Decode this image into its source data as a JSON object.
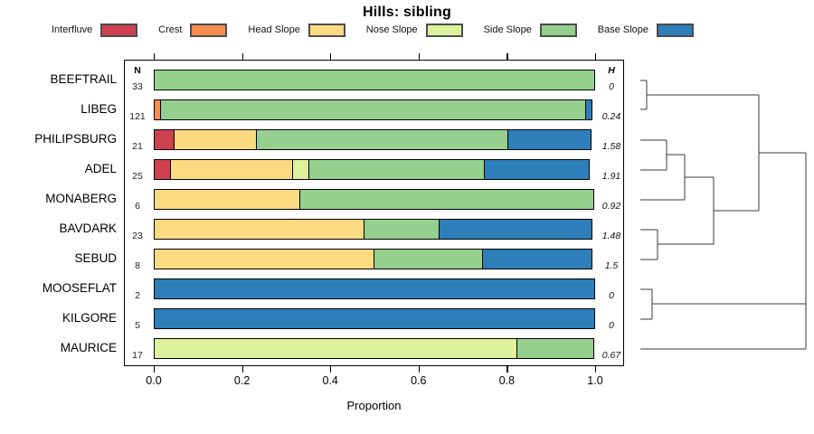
{
  "title": "Hills: sibling",
  "columns": {
    "n_header": "N",
    "h_header": "H"
  },
  "axis": {
    "xlabel": "Proportion"
  },
  "chart_data": {
    "type": "bar",
    "orientation": "horizontal",
    "stacked": true,
    "title": "Hills: sibling",
    "xlabel": "Proportion",
    "xlim": [
      0,
      1
    ],
    "grid": false,
    "legend_position": "top",
    "x_ticks": [
      {
        "value": 0.0,
        "label": "0.0"
      },
      {
        "value": 0.2,
        "label": "0.2"
      },
      {
        "value": 0.4,
        "label": "0.4"
      },
      {
        "value": 0.6,
        "label": "0.6"
      },
      {
        "value": 0.8,
        "label": "0.8"
      },
      {
        "value": 1.0,
        "label": "1.0"
      }
    ],
    "series": [
      {
        "name": "Interfluve",
        "color": "#ce4150"
      },
      {
        "name": "Crest",
        "color": "#f68d4f"
      },
      {
        "name": "Head Slope",
        "color": "#fcda82"
      },
      {
        "name": "Nose Slope",
        "color": "#e0f19b"
      },
      {
        "name": "Side Slope",
        "color": "#95d08f"
      },
      {
        "name": "Base Slope",
        "color": "#2e7fb9"
      }
    ],
    "rows": [
      {
        "category": "BEEFTRAIL",
        "n": "33",
        "h": "0",
        "segments": [
          {
            "series": "Side Slope",
            "fraction": 1.0
          }
        ]
      },
      {
        "category": "LIBEG",
        "n": "121",
        "h": "0.24",
        "segments": [
          {
            "series": "Crest",
            "fraction": 0.017
          },
          {
            "series": "Side Slope",
            "fraction": 0.966
          },
          {
            "series": "Base Slope",
            "fraction": 0.017
          }
        ]
      },
      {
        "category": "PHILIPSBURG",
        "n": "21",
        "h": "1.58",
        "segments": [
          {
            "series": "Interfluve",
            "fraction": 0.048
          },
          {
            "series": "Head Slope",
            "fraction": 0.19
          },
          {
            "series": "Side Slope",
            "fraction": 0.572
          },
          {
            "series": "Base Slope",
            "fraction": 0.19
          }
        ]
      },
      {
        "category": "ADEL",
        "n": "25",
        "h": "1.91",
        "segments": [
          {
            "series": "Interfluve",
            "fraction": 0.04
          },
          {
            "series": "Head Slope",
            "fraction": 0.28
          },
          {
            "series": "Nose Slope",
            "fraction": 0.04
          },
          {
            "series": "Side Slope",
            "fraction": 0.4
          },
          {
            "series": "Base Slope",
            "fraction": 0.24
          }
        ]
      },
      {
        "category": "MONABERG",
        "n": "6",
        "h": "0.92",
        "segments": [
          {
            "series": "Head Slope",
            "fraction": 0.333
          },
          {
            "series": "Side Slope",
            "fraction": 0.667
          }
        ]
      },
      {
        "category": "BAVDARK",
        "n": "23",
        "h": "1.48",
        "segments": [
          {
            "series": "Head Slope",
            "fraction": 0.478
          },
          {
            "series": "Side Slope",
            "fraction": 0.174
          },
          {
            "series": "Base Slope",
            "fraction": 0.348
          }
        ]
      },
      {
        "category": "SEBUD",
        "n": "8",
        "h": "1.5",
        "segments": [
          {
            "series": "Head Slope",
            "fraction": 0.5
          },
          {
            "series": "Side Slope",
            "fraction": 0.25
          },
          {
            "series": "Base Slope",
            "fraction": 0.25
          }
        ]
      },
      {
        "category": "MOOSEFLAT",
        "n": "2",
        "h": "0",
        "segments": [
          {
            "series": "Base Slope",
            "fraction": 1.0
          }
        ]
      },
      {
        "category": "KILGORE",
        "n": "5",
        "h": "0",
        "segments": [
          {
            "series": "Base Slope",
            "fraction": 1.0
          }
        ]
      },
      {
        "category": "MAURICE",
        "n": "17",
        "h": "0.67",
        "segments": [
          {
            "series": "Nose Slope",
            "fraction": 0.824
          },
          {
            "series": "Side Slope",
            "fraction": 0.176
          }
        ]
      }
    ],
    "dendrogram": {
      "description": "right-hanging cluster tree; pixel segments [x1,y1,x2,y2]",
      "structure": "((BEEFTRAIL,LIBEG),(((PHILIPSBURG,ADEL),MONABERG),(BAVDARK,SEBUD))) joined with ((MOOSEFLAT,KILGORE),MAURICE) at root",
      "segments": [
        [
          708,
          89,
          715,
          89
        ],
        [
          708,
          121,
          715,
          121
        ],
        [
          715,
          89,
          715,
          121
        ],
        [
          715,
          105,
          839,
          105
        ],
        [
          708,
          155,
          737,
          155
        ],
        [
          708,
          188,
          737,
          188
        ],
        [
          737,
          155,
          737,
          188
        ],
        [
          737,
          171,
          757,
          171
        ],
        [
          708,
          221,
          757,
          221
        ],
        [
          757,
          171,
          757,
          221
        ],
        [
          757,
          196,
          789,
          196
        ],
        [
          708,
          254,
          727,
          254
        ],
        [
          708,
          287,
          727,
          287
        ],
        [
          727,
          254,
          727,
          287
        ],
        [
          727,
          270,
          789,
          270
        ],
        [
          789,
          196,
          789,
          270
        ],
        [
          789,
          233,
          839,
          233
        ],
        [
          839,
          105,
          839,
          233
        ],
        [
          839,
          169,
          891,
          169
        ],
        [
          708,
          320,
          721,
          320
        ],
        [
          708,
          353,
          721,
          353
        ],
        [
          721,
          320,
          721,
          353
        ],
        [
          721,
          336,
          891,
          336
        ],
        [
          708,
          386,
          891,
          386
        ],
        [
          891,
          169,
          891,
          386
        ]
      ]
    }
  }
}
